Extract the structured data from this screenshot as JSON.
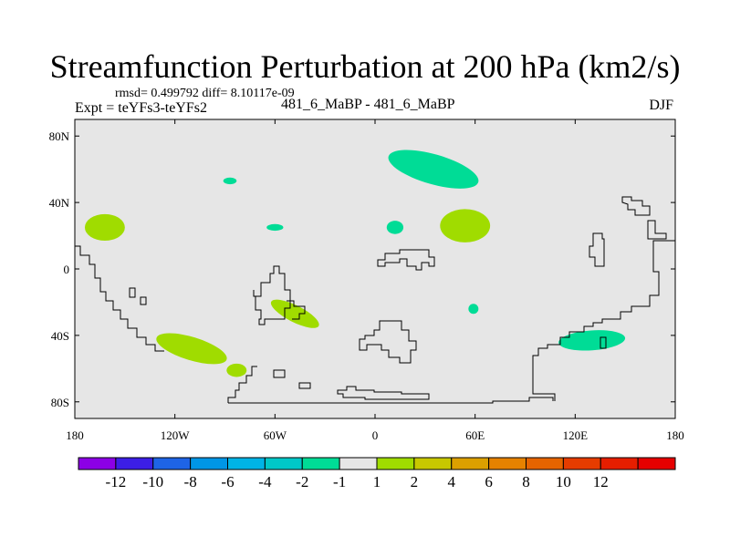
{
  "title": "Streamfunction Perturbation at 200 hPa (km2/s)",
  "stats": "rmsd= 0.499792  diff= 8.10117e-09",
  "experiment": "Expt = teYFs3-teYFs2",
  "case": "481_6_MaBP - 481_6_MaBP",
  "season": "DJF",
  "map": {
    "projection": "cylindrical-equidistant",
    "lon_range": [
      -180,
      180
    ],
    "lat_range": [
      -90,
      90
    ],
    "background_color": "#e6e6e6",
    "x_ticks": [
      {
        "lon": -180,
        "label": "180"
      },
      {
        "lon": -120,
        "label": "120W"
      },
      {
        "lon": -60,
        "label": "60W"
      },
      {
        "lon": 0,
        "label": "0"
      },
      {
        "lon": 60,
        "label": "60E"
      },
      {
        "lon": 120,
        "label": "120E"
      },
      {
        "lon": 180,
        "label": "180"
      }
    ],
    "y_ticks": [
      {
        "lat": 80,
        "label": "80N"
      },
      {
        "lat": 40,
        "label": "40N"
      },
      {
        "lat": 0,
        "label": "0"
      },
      {
        "lat": -40,
        "label": "40S"
      },
      {
        "lat": -80,
        "label": "80S"
      }
    ]
  },
  "anomalies": [
    {
      "name": "north-pacific-negative",
      "lon": 35,
      "lat": 60,
      "rx_deg": 28,
      "ry_deg": 9,
      "angle": 16,
      "level": "-2 to -1",
      "color": "#00dc96"
    },
    {
      "name": "arabia-positive",
      "lon": 54,
      "lat": 26,
      "rx_deg": 15,
      "ry_deg": 10,
      "angle": 0,
      "level": "1 to 2",
      "color": "#a0dc00"
    },
    {
      "name": "pacific-tropical-positive",
      "lon": -162,
      "lat": 25,
      "rx_deg": 12,
      "ry_deg": 8,
      "angle": 0,
      "level": "1 to 2",
      "color": "#a0dc00"
    },
    {
      "name": "atlantic-north-negative",
      "lon": -87,
      "lat": 53,
      "rx_deg": 4,
      "ry_deg": 2,
      "angle": 0,
      "level": "-2 to -1",
      "color": "#00dc96"
    },
    {
      "name": "atlantic-tropical-negative",
      "lon": -60,
      "lat": 25,
      "rx_deg": 5,
      "ry_deg": 2,
      "angle": 0,
      "level": "-2 to -1",
      "color": "#00dc96"
    },
    {
      "name": "africa-small-negative",
      "lon": 12,
      "lat": 25,
      "rx_deg": 5,
      "ry_deg": 4,
      "angle": 0,
      "level": "-2 to -1",
      "color": "#00dc96"
    },
    {
      "name": "indian-ocean-small-negative",
      "lon": 59,
      "lat": -24,
      "rx_deg": 3,
      "ry_deg": 3,
      "angle": 0,
      "level": "-2 to -1",
      "color": "#00dc96"
    },
    {
      "name": "south-atlantic-positive",
      "lon": -48,
      "lat": -27,
      "rx_deg": 16,
      "ry_deg": 5,
      "angle": 27,
      "level": "1 to 2",
      "color": "#a0dc00"
    },
    {
      "name": "south-pacific-positive",
      "lon": -110,
      "lat": -48,
      "rx_deg": 22,
      "ry_deg": 7,
      "angle": 17,
      "level": "1 to 2",
      "color": "#a0dc00"
    },
    {
      "name": "south-pacific-positive-tail",
      "lon": -83,
      "lat": -61,
      "rx_deg": 6,
      "ry_deg": 4,
      "angle": 0,
      "level": "1 to 2",
      "color": "#a0dc00"
    },
    {
      "name": "australia-negative",
      "lon": 130,
      "lat": -43,
      "rx_deg": 20,
      "ry_deg": 6,
      "angle": -4,
      "level": "-2 to -1",
      "color": "#00dc96"
    }
  ],
  "colorbar": {
    "colors": [
      "#8c00e6",
      "#3c1ee6",
      "#1e64e6",
      "#0096e6",
      "#00b4e6",
      "#00c8c8",
      "#00dc96",
      "#e6e6e6",
      "#a0dc00",
      "#c8c800",
      "#dca000",
      "#e68200",
      "#e66400",
      "#e63c00",
      "#e61e00",
      "#e60000"
    ],
    "labels": [
      "-12",
      "-10",
      "-8",
      "-6",
      "-4",
      "-2",
      "-1",
      "1",
      "2",
      "4",
      "6",
      "8",
      "10",
      "12"
    ]
  }
}
